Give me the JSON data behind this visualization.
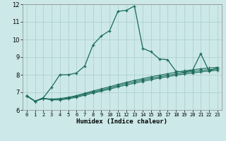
{
  "title": "",
  "xlabel": "Humidex (Indice chaleur)",
  "xlim": [
    -0.5,
    23.5
  ],
  "ylim": [
    6,
    12
  ],
  "yticks": [
    6,
    7,
    8,
    9,
    10,
    11,
    12
  ],
  "xtick_labels": [
    "0",
    "1",
    "2",
    "3",
    "4",
    "5",
    "6",
    "7",
    "8",
    "9",
    "10",
    "11",
    "12",
    "13",
    "14",
    "15",
    "16",
    "17",
    "18",
    "19",
    "20",
    "21",
    "22",
    "23"
  ],
  "bg_color": "#cce8e8",
  "grid_color": "#aacccc",
  "line_color": "#1a6b5a",
  "line1_y": [
    6.8,
    6.5,
    6.7,
    7.3,
    8.0,
    8.0,
    8.1,
    8.5,
    9.7,
    10.2,
    10.5,
    11.6,
    11.65,
    11.9,
    9.5,
    9.3,
    8.9,
    8.85,
    8.2,
    8.15,
    8.25,
    9.2,
    8.2,
    8.4
  ],
  "line2_y": [
    6.8,
    6.5,
    6.65,
    6.62,
    6.65,
    6.72,
    6.82,
    6.95,
    7.08,
    7.2,
    7.32,
    7.45,
    7.57,
    7.68,
    7.78,
    7.88,
    7.97,
    8.06,
    8.14,
    8.22,
    8.28,
    8.34,
    8.38,
    8.42
  ],
  "line3_y": [
    6.8,
    6.5,
    6.65,
    6.6,
    6.6,
    6.68,
    6.77,
    6.9,
    7.02,
    7.13,
    7.25,
    7.38,
    7.5,
    7.6,
    7.7,
    7.8,
    7.88,
    7.97,
    8.05,
    8.12,
    8.18,
    8.24,
    8.29,
    8.33
  ],
  "line4_y": [
    6.8,
    6.5,
    6.65,
    6.58,
    6.57,
    6.63,
    6.72,
    6.84,
    6.96,
    7.07,
    7.18,
    7.31,
    7.42,
    7.52,
    7.62,
    7.72,
    7.81,
    7.89,
    7.97,
    8.04,
    8.1,
    8.16,
    8.21,
    8.25
  ]
}
